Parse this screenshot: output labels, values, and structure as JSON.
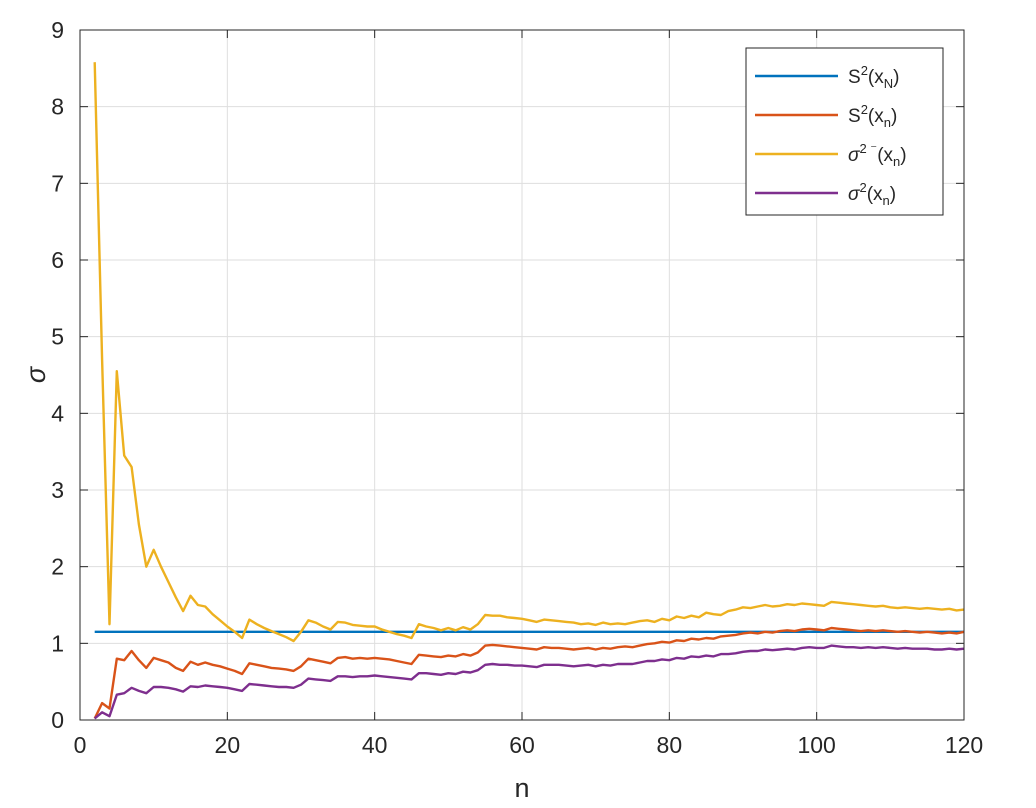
{
  "chart_data": {
    "type": "line",
    "xlabel": "n",
    "ylabel": "σ",
    "xlim": [
      0,
      120
    ],
    "ylim": [
      0,
      9
    ],
    "xticks": [
      0,
      20,
      40,
      60,
      80,
      100,
      120
    ],
    "yticks": [
      0,
      1,
      2,
      3,
      4,
      5,
      6,
      7,
      8,
      9
    ],
    "grid": true,
    "legend_position": "top-right",
    "series": [
      {
        "name": "S²(x_N)",
        "legend": {
          "base": "S",
          "sup": "2",
          "open": "(x",
          "sub": "N",
          "close": ")"
        },
        "color": "#0072BD",
        "x": [
          2,
          120
        ],
        "y": [
          1.15,
          1.15
        ]
      },
      {
        "name": "S²(x_n)",
        "legend": {
          "base": "S",
          "sup": "2",
          "open": "(x",
          "sub": "n",
          "close": ")"
        },
        "color": "#D95319",
        "x": [
          2,
          3,
          4,
          5,
          6,
          7,
          8,
          9,
          10,
          11,
          12,
          13,
          14,
          15,
          16,
          17,
          18,
          19,
          20,
          21,
          22,
          23,
          24,
          25,
          26,
          27,
          28,
          29,
          30,
          31,
          32,
          33,
          34,
          35,
          36,
          37,
          38,
          39,
          40,
          41,
          42,
          43,
          44,
          45,
          46,
          47,
          48,
          49,
          50,
          51,
          52,
          53,
          54,
          55,
          56,
          57,
          58,
          59,
          60,
          61,
          62,
          63,
          64,
          65,
          66,
          67,
          68,
          69,
          70,
          71,
          72,
          73,
          74,
          75,
          76,
          77,
          78,
          79,
          80,
          81,
          82,
          83,
          84,
          85,
          86,
          87,
          88,
          89,
          90,
          91,
          92,
          93,
          94,
          95,
          96,
          97,
          98,
          99,
          100,
          101,
          102,
          103,
          104,
          105,
          106,
          107,
          108,
          109,
          110,
          111,
          112,
          113,
          114,
          115,
          116,
          117,
          118,
          119,
          120
        ],
        "y": [
          0.02,
          0.22,
          0.15,
          0.8,
          0.78,
          0.9,
          0.78,
          0.68,
          0.81,
          0.78,
          0.75,
          0.68,
          0.64,
          0.76,
          0.72,
          0.75,
          0.72,
          0.7,
          0.67,
          0.64,
          0.6,
          0.74,
          0.72,
          0.7,
          0.68,
          0.67,
          0.66,
          0.64,
          0.7,
          0.8,
          0.78,
          0.76,
          0.74,
          0.81,
          0.82,
          0.8,
          0.81,
          0.8,
          0.81,
          0.8,
          0.79,
          0.77,
          0.75,
          0.73,
          0.85,
          0.84,
          0.83,
          0.82,
          0.84,
          0.83,
          0.86,
          0.84,
          0.88,
          0.97,
          0.98,
          0.97,
          0.96,
          0.95,
          0.94,
          0.93,
          0.92,
          0.95,
          0.94,
          0.94,
          0.93,
          0.92,
          0.93,
          0.94,
          0.92,
          0.94,
          0.93,
          0.95,
          0.96,
          0.95,
          0.97,
          0.99,
          1.0,
          1.02,
          1.01,
          1.04,
          1.03,
          1.06,
          1.05,
          1.07,
          1.06,
          1.09,
          1.1,
          1.11,
          1.13,
          1.14,
          1.13,
          1.15,
          1.14,
          1.16,
          1.17,
          1.16,
          1.18,
          1.19,
          1.18,
          1.17,
          1.2,
          1.19,
          1.18,
          1.17,
          1.16,
          1.17,
          1.16,
          1.17,
          1.16,
          1.15,
          1.16,
          1.15,
          1.14,
          1.15,
          1.14,
          1.13,
          1.14,
          1.13,
          1.15
        ]
      },
      {
        "name": "σ² ⁻(x_n)",
        "legend": {
          "base": "σ",
          "sup": "2 ⁻",
          "open": "(x",
          "sub": "n",
          "close": ")"
        },
        "color": "#EDB120",
        "x": [
          2,
          3,
          4,
          5,
          6,
          7,
          8,
          9,
          10,
          11,
          12,
          13,
          14,
          15,
          16,
          17,
          18,
          19,
          20,
          21,
          22,
          23,
          24,
          25,
          26,
          27,
          28,
          29,
          30,
          31,
          32,
          33,
          34,
          35,
          36,
          37,
          38,
          39,
          40,
          41,
          42,
          43,
          44,
          45,
          46,
          47,
          48,
          49,
          50,
          51,
          52,
          53,
          54,
          55,
          56,
          57,
          58,
          59,
          60,
          61,
          62,
          63,
          64,
          65,
          66,
          67,
          68,
          69,
          70,
          71,
          72,
          73,
          74,
          75,
          76,
          77,
          78,
          79,
          80,
          81,
          82,
          83,
          84,
          85,
          86,
          87,
          88,
          89,
          90,
          91,
          92,
          93,
          94,
          95,
          96,
          97,
          98,
          99,
          100,
          101,
          102,
          103,
          104,
          105,
          106,
          107,
          108,
          109,
          110,
          111,
          112,
          113,
          114,
          115,
          116,
          117,
          118,
          119,
          120
        ],
        "y": [
          8.58,
          4.7,
          1.25,
          4.55,
          3.45,
          3.3,
          2.55,
          2.0,
          2.22,
          2.0,
          1.8,
          1.6,
          1.42,
          1.62,
          1.5,
          1.48,
          1.38,
          1.3,
          1.22,
          1.15,
          1.07,
          1.31,
          1.25,
          1.2,
          1.16,
          1.12,
          1.08,
          1.03,
          1.15,
          1.3,
          1.27,
          1.22,
          1.18,
          1.28,
          1.27,
          1.24,
          1.23,
          1.22,
          1.22,
          1.18,
          1.15,
          1.12,
          1.1,
          1.07,
          1.25,
          1.22,
          1.2,
          1.17,
          1.2,
          1.17,
          1.21,
          1.18,
          1.25,
          1.37,
          1.36,
          1.36,
          1.34,
          1.33,
          1.32,
          1.3,
          1.28,
          1.31,
          1.3,
          1.29,
          1.28,
          1.27,
          1.25,
          1.26,
          1.24,
          1.27,
          1.25,
          1.26,
          1.25,
          1.27,
          1.29,
          1.3,
          1.28,
          1.32,
          1.3,
          1.35,
          1.33,
          1.36,
          1.34,
          1.4,
          1.38,
          1.37,
          1.42,
          1.44,
          1.47,
          1.46,
          1.48,
          1.5,
          1.48,
          1.49,
          1.51,
          1.5,
          1.52,
          1.51,
          1.5,
          1.49,
          1.54,
          1.53,
          1.52,
          1.51,
          1.5,
          1.49,
          1.48,
          1.49,
          1.47,
          1.46,
          1.47,
          1.46,
          1.45,
          1.46,
          1.45,
          1.44,
          1.45,
          1.43,
          1.44
        ]
      },
      {
        "name": "σ²₋(x_n)",
        "legend": {
          "base": "σ",
          "sup": "2",
          "open": "(x",
          "sub": "n",
          "close": ")"
        },
        "color": "#7E2F8E",
        "x": [
          2,
          3,
          4,
          5,
          6,
          7,
          8,
          9,
          10,
          11,
          12,
          13,
          14,
          15,
          16,
          17,
          18,
          19,
          20,
          21,
          22,
          23,
          24,
          25,
          26,
          27,
          28,
          29,
          30,
          31,
          32,
          33,
          34,
          35,
          36,
          37,
          38,
          39,
          40,
          41,
          42,
          43,
          44,
          45,
          46,
          47,
          48,
          49,
          50,
          51,
          52,
          53,
          54,
          55,
          56,
          57,
          58,
          59,
          60,
          61,
          62,
          63,
          64,
          65,
          66,
          67,
          68,
          69,
          70,
          71,
          72,
          73,
          74,
          75,
          76,
          77,
          78,
          79,
          80,
          81,
          82,
          83,
          84,
          85,
          86,
          87,
          88,
          89,
          90,
          91,
          92,
          93,
          94,
          95,
          96,
          97,
          98,
          99,
          100,
          101,
          102,
          103,
          104,
          105,
          106,
          107,
          108,
          109,
          110,
          111,
          112,
          113,
          114,
          115,
          116,
          117,
          118,
          119,
          120
        ],
        "y": [
          0.02,
          0.1,
          0.05,
          0.33,
          0.35,
          0.42,
          0.38,
          0.35,
          0.43,
          0.43,
          0.42,
          0.4,
          0.37,
          0.44,
          0.43,
          0.45,
          0.44,
          0.43,
          0.42,
          0.4,
          0.38,
          0.47,
          0.46,
          0.45,
          0.44,
          0.43,
          0.43,
          0.42,
          0.46,
          0.54,
          0.53,
          0.52,
          0.51,
          0.57,
          0.57,
          0.56,
          0.57,
          0.57,
          0.58,
          0.57,
          0.56,
          0.55,
          0.54,
          0.53,
          0.61,
          0.61,
          0.6,
          0.59,
          0.61,
          0.6,
          0.63,
          0.62,
          0.65,
          0.72,
          0.73,
          0.72,
          0.72,
          0.71,
          0.71,
          0.7,
          0.69,
          0.72,
          0.72,
          0.72,
          0.71,
          0.7,
          0.71,
          0.72,
          0.7,
          0.72,
          0.71,
          0.73,
          0.73,
          0.73,
          0.75,
          0.77,
          0.77,
          0.79,
          0.78,
          0.81,
          0.8,
          0.83,
          0.82,
          0.84,
          0.83,
          0.86,
          0.86,
          0.87,
          0.89,
          0.9,
          0.9,
          0.92,
          0.91,
          0.92,
          0.93,
          0.92,
          0.94,
          0.95,
          0.94,
          0.94,
          0.97,
          0.96,
          0.95,
          0.95,
          0.94,
          0.95,
          0.94,
          0.95,
          0.94,
          0.93,
          0.94,
          0.93,
          0.93,
          0.93,
          0.92,
          0.92,
          0.93,
          0.92,
          0.93
        ]
      }
    ]
  }
}
